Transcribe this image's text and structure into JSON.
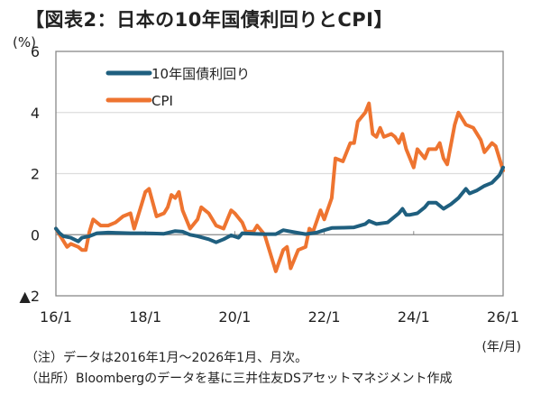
{
  "title": "【図表2：日本の10年国債利回りとCPI】",
  "chart_data": {
    "type": "line",
    "title": "【図表2：日本の10年国債利回りとCPI】",
    "ylabel": "(%)",
    "xlabel": "(年/月)",
    "ylim": [
      -2,
      6
    ],
    "yticks": [
      6,
      4,
      2,
      0,
      -2
    ],
    "ytick_labels": [
      "6",
      "4",
      "2",
      "0",
      "▲2"
    ],
    "xlim": [
      "2016-01",
      "2026-01"
    ],
    "xtick_labels": [
      "16/1",
      "18/1",
      "20/1",
      "22/1",
      "24/1",
      "26/1"
    ],
    "grid": "horizontal",
    "legend_position": "top-left",
    "series": [
      {
        "name": "10年国債利回り",
        "color": "#1f5f7f",
        "points": [
          [
            "2016-01",
            0.2
          ],
          [
            "2016-02",
            0.05
          ],
          [
            "2016-03",
            -0.05
          ],
          [
            "2016-05",
            -0.1
          ],
          [
            "2016-07",
            -0.22
          ],
          [
            "2016-08",
            -0.1
          ],
          [
            "2016-10",
            -0.05
          ],
          [
            "2016-12",
            0.05
          ],
          [
            "2017-03",
            0.07
          ],
          [
            "2017-06",
            0.06
          ],
          [
            "2017-09",
            0.05
          ],
          [
            "2017-12",
            0.05
          ],
          [
            "2018-03",
            0.04
          ],
          [
            "2018-06",
            0.03
          ],
          [
            "2018-09",
            0.12
          ],
          [
            "2018-11",
            0.1
          ],
          [
            "2019-01",
            0.0
          ],
          [
            "2019-03",
            -0.05
          ],
          [
            "2019-06",
            -0.15
          ],
          [
            "2019-08",
            -0.25
          ],
          [
            "2019-10",
            -0.15
          ],
          [
            "2019-12",
            -0.02
          ],
          [
            "2020-02",
            -0.1
          ],
          [
            "2020-03",
            0.05
          ],
          [
            "2020-06",
            0.03
          ],
          [
            "2020-09",
            0.02
          ],
          [
            "2020-12",
            0.02
          ],
          [
            "2021-02",
            0.15
          ],
          [
            "2021-05",
            0.08
          ],
          [
            "2021-08",
            0.02
          ],
          [
            "2021-11",
            0.07
          ],
          [
            "2022-01",
            0.15
          ],
          [
            "2022-03",
            0.22
          ],
          [
            "2022-06",
            0.23
          ],
          [
            "2022-09",
            0.24
          ],
          [
            "2022-12",
            0.35
          ],
          [
            "2023-01",
            0.45
          ],
          [
            "2023-03",
            0.35
          ],
          [
            "2023-06",
            0.4
          ],
          [
            "2023-09",
            0.7
          ],
          [
            "2023-10",
            0.85
          ],
          [
            "2023-11",
            0.65
          ],
          [
            "2023-12",
            0.65
          ],
          [
            "2024-02",
            0.7
          ],
          [
            "2024-04",
            0.9
          ],
          [
            "2024-05",
            1.05
          ],
          [
            "2024-07",
            1.05
          ],
          [
            "2024-09",
            0.85
          ],
          [
            "2024-11",
            1.0
          ],
          [
            "2025-01",
            1.2
          ],
          [
            "2025-03",
            1.5
          ],
          [
            "2025-04",
            1.35
          ],
          [
            "2025-06",
            1.45
          ],
          [
            "2025-08",
            1.6
          ],
          [
            "2025-10",
            1.7
          ],
          [
            "2025-12",
            1.95
          ],
          [
            "2026-01",
            2.2
          ]
        ]
      },
      {
        "name": "CPI",
        "color": "#ee7430",
        "points": [
          [
            "2016-01",
            0.2
          ],
          [
            "2016-02",
            0.0
          ],
          [
            "2016-04",
            -0.4
          ],
          [
            "2016-05",
            -0.3
          ],
          [
            "2016-07",
            -0.4
          ],
          [
            "2016-08",
            -0.5
          ],
          [
            "2016-09",
            -0.5
          ],
          [
            "2016-10",
            0.1
          ],
          [
            "2016-11",
            0.5
          ],
          [
            "2017-01",
            0.3
          ],
          [
            "2017-03",
            0.3
          ],
          [
            "2017-05",
            0.4
          ],
          [
            "2017-07",
            0.6
          ],
          [
            "2017-09",
            0.7
          ],
          [
            "2017-10",
            0.2
          ],
          [
            "2017-12",
            1.0
          ],
          [
            "2018-01",
            1.4
          ],
          [
            "2018-02",
            1.5
          ],
          [
            "2018-04",
            0.6
          ],
          [
            "2018-06",
            0.7
          ],
          [
            "2018-07",
            0.9
          ],
          [
            "2018-08",
            1.3
          ],
          [
            "2018-09",
            1.2
          ],
          [
            "2018-10",
            1.4
          ],
          [
            "2018-11",
            0.8
          ],
          [
            "2019-01",
            0.2
          ],
          [
            "2019-03",
            0.5
          ],
          [
            "2019-04",
            0.9
          ],
          [
            "2019-06",
            0.7
          ],
          [
            "2019-08",
            0.3
          ],
          [
            "2019-10",
            0.2
          ],
          [
            "2019-12",
            0.8
          ],
          [
            "2020-01",
            0.7
          ],
          [
            "2020-03",
            0.4
          ],
          [
            "2020-04",
            0.1
          ],
          [
            "2020-06",
            0.1
          ],
          [
            "2020-07",
            0.3
          ],
          [
            "2020-09",
            0.0
          ],
          [
            "2020-10",
            -0.4
          ],
          [
            "2020-12",
            -1.2
          ],
          [
            "2021-02",
            -0.5
          ],
          [
            "2021-03",
            -0.4
          ],
          [
            "2021-04",
            -1.1
          ],
          [
            "2021-06",
            -0.5
          ],
          [
            "2021-08",
            -0.4
          ],
          [
            "2021-09",
            0.2
          ],
          [
            "2021-10",
            0.1
          ],
          [
            "2021-12",
            0.8
          ],
          [
            "2022-01",
            0.5
          ],
          [
            "2022-03",
            1.2
          ],
          [
            "2022-04",
            2.5
          ],
          [
            "2022-06",
            2.4
          ],
          [
            "2022-08",
            3.0
          ],
          [
            "2022-09",
            3.0
          ],
          [
            "2022-10",
            3.7
          ],
          [
            "2022-12",
            4.0
          ],
          [
            "2023-01",
            4.3
          ],
          [
            "2023-02",
            3.3
          ],
          [
            "2023-03",
            3.2
          ],
          [
            "2023-04",
            3.5
          ],
          [
            "2023-05",
            3.2
          ],
          [
            "2023-07",
            3.3
          ],
          [
            "2023-08",
            3.2
          ],
          [
            "2023-09",
            3.0
          ],
          [
            "2023-10",
            3.3
          ],
          [
            "2023-11",
            2.8
          ],
          [
            "2024-01",
            2.2
          ],
          [
            "2024-02",
            2.8
          ],
          [
            "2024-04",
            2.5
          ],
          [
            "2024-05",
            2.8
          ],
          [
            "2024-07",
            2.8
          ],
          [
            "2024-08",
            3.0
          ],
          [
            "2024-09",
            2.5
          ],
          [
            "2024-10",
            2.3
          ],
          [
            "2024-12",
            3.6
          ],
          [
            "2025-01",
            4.0
          ],
          [
            "2025-03",
            3.6
          ],
          [
            "2025-05",
            3.5
          ],
          [
            "2025-07",
            3.1
          ],
          [
            "2025-08",
            2.7
          ],
          [
            "2025-10",
            3.0
          ],
          [
            "2025-11",
            2.9
          ],
          [
            "2026-01",
            2.1
          ]
        ]
      }
    ]
  },
  "y_unit": "(%)",
  "x_unit": "(年/月)",
  "notes": [
    "（注）データは2016年1月～2026年1月、月次。",
    "（出所）Bloombergのデータを基に三井住友DSアセットマネジメント作成"
  ]
}
